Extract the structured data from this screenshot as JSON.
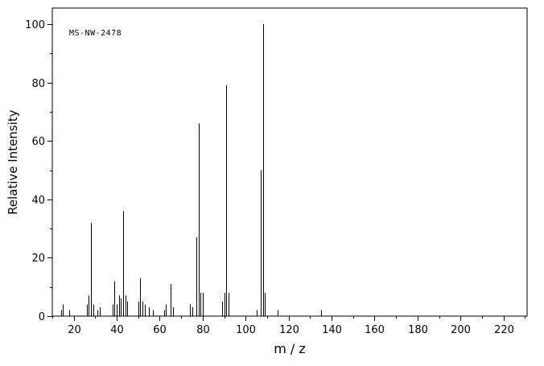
{
  "figure": {
    "background": "#ffffff",
    "axis_color": "#000000",
    "peak_color": "#000000"
  },
  "chart_data": {
    "type": "bar",
    "chart_kind": "mass-spectrum",
    "annotation": "MS-NW-2478",
    "xlabel": "m / z",
    "ylabel": "Relative Intensity",
    "xlim": [
      10,
      231
    ],
    "ylim": [
      0,
      100
    ],
    "x_major_ticks": [
      20,
      40,
      60,
      80,
      100,
      120,
      140,
      160,
      180,
      200,
      220
    ],
    "x_minor_step": 10,
    "y_major_ticks": [
      0,
      20,
      40,
      60,
      80,
      100
    ],
    "y_minor_step": 10,
    "grid": false,
    "legend": false,
    "peaks": [
      {
        "mz": 14,
        "intensity": 2
      },
      {
        "mz": 15,
        "intensity": 4
      },
      {
        "mz": 18,
        "intensity": 2
      },
      {
        "mz": 26,
        "intensity": 4
      },
      {
        "mz": 27,
        "intensity": 7
      },
      {
        "mz": 28,
        "intensity": 32
      },
      {
        "mz": 29,
        "intensity": 4
      },
      {
        "mz": 31,
        "intensity": 2
      },
      {
        "mz": 32,
        "intensity": 3
      },
      {
        "mz": 38,
        "intensity": 4
      },
      {
        "mz": 39,
        "intensity": 12
      },
      {
        "mz": 40,
        "intensity": 4
      },
      {
        "mz": 41,
        "intensity": 7
      },
      {
        "mz": 42,
        "intensity": 6
      },
      {
        "mz": 43,
        "intensity": 36
      },
      {
        "mz": 44,
        "intensity": 7
      },
      {
        "mz": 45,
        "intensity": 5
      },
      {
        "mz": 50,
        "intensity": 5
      },
      {
        "mz": 51,
        "intensity": 13
      },
      {
        "mz": 52,
        "intensity": 5
      },
      {
        "mz": 53,
        "intensity": 4
      },
      {
        "mz": 55,
        "intensity": 3
      },
      {
        "mz": 57,
        "intensity": 2
      },
      {
        "mz": 62,
        "intensity": 2
      },
      {
        "mz": 63,
        "intensity": 4
      },
      {
        "mz": 65,
        "intensity": 11
      },
      {
        "mz": 66,
        "intensity": 3
      },
      {
        "mz": 74,
        "intensity": 4
      },
      {
        "mz": 75,
        "intensity": 3
      },
      {
        "mz": 77,
        "intensity": 27
      },
      {
        "mz": 78,
        "intensity": 66
      },
      {
        "mz": 79,
        "intensity": 8
      },
      {
        "mz": 80,
        "intensity": 8
      },
      {
        "mz": 89,
        "intensity": 5
      },
      {
        "mz": 90,
        "intensity": 8
      },
      {
        "mz": 91,
        "intensity": 79
      },
      {
        "mz": 92,
        "intensity": 8
      },
      {
        "mz": 105,
        "intensity": 2
      },
      {
        "mz": 107,
        "intensity": 50
      },
      {
        "mz": 108,
        "intensity": 100
      },
      {
        "mz": 109,
        "intensity": 8
      },
      {
        "mz": 115,
        "intensity": 2
      },
      {
        "mz": 135,
        "intensity": 2
      }
    ]
  }
}
